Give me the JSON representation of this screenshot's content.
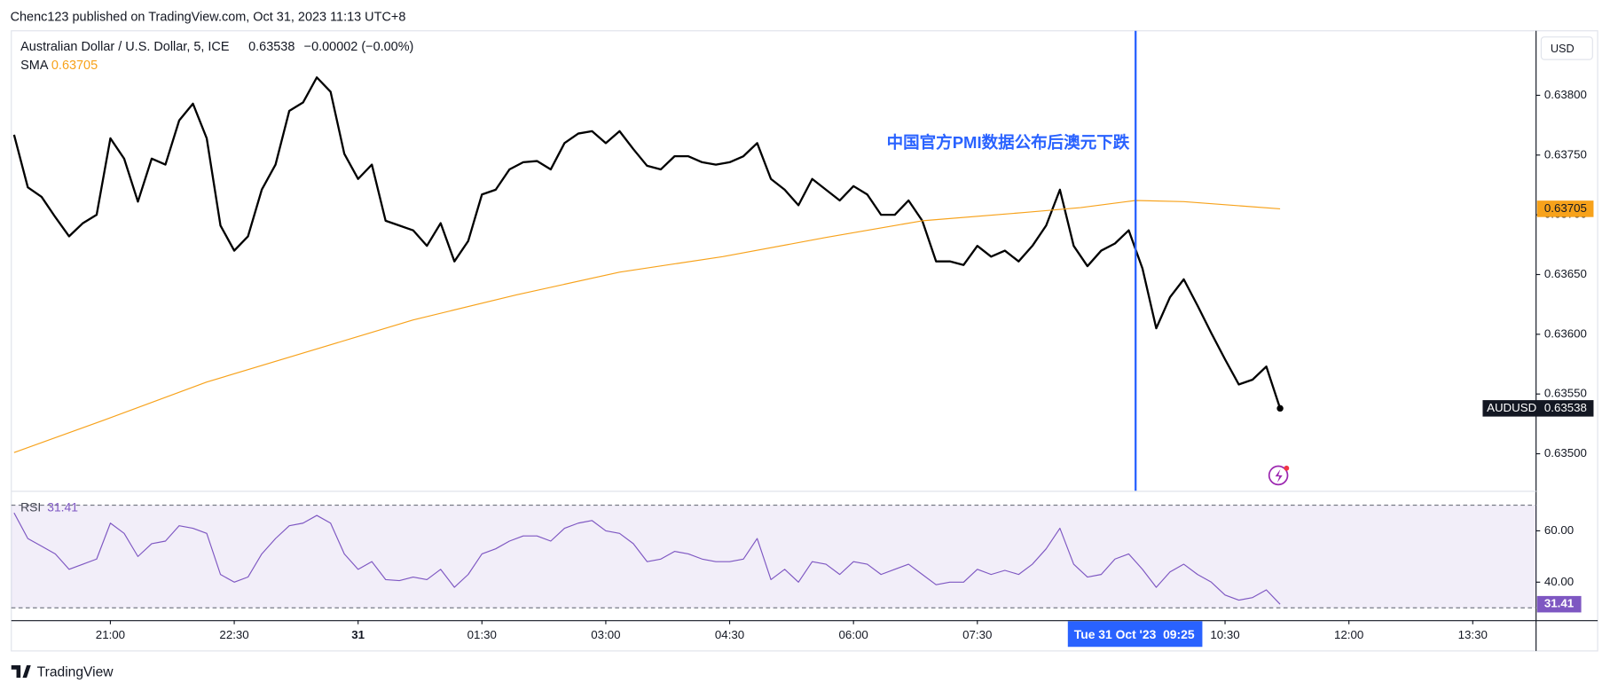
{
  "header": "Chenc123 published on TradingView.com, Oct 31, 2023 11:13 UTC+8",
  "footer": "TradingView",
  "chart_data": [
    {
      "type": "line",
      "title": "Australian Dollar / U.S. Dollar, 5, ICE",
      "change": "−0.00002 (−0.00%)",
      "currency": "USD",
      "annotation": "中国官方PMI数据公布后澳元下跌",
      "marker": {
        "x": "09:25",
        "label": "Tue 31 Oct '23"
      },
      "x": [
        "19:50",
        "20:00",
        "20:10",
        "20:20",
        "20:30",
        "20:40",
        "20:50",
        "21:00",
        "21:10",
        "21:20",
        "21:30",
        "21:40",
        "21:50",
        "22:00",
        "22:10",
        "22:20",
        "22:30",
        "22:40",
        "22:50",
        "23:00",
        "23:10",
        "23:20",
        "23:30",
        "23:40",
        "23:50",
        "00:00",
        "00:10",
        "00:20",
        "00:30",
        "00:40",
        "00:50",
        "01:00",
        "01:10",
        "01:20",
        "01:30",
        "01:40",
        "01:50",
        "02:00",
        "02:10",
        "02:20",
        "02:30",
        "02:40",
        "02:50",
        "03:00",
        "03:10",
        "03:20",
        "03:30",
        "03:40",
        "03:50",
        "04:00",
        "04:10",
        "04:20",
        "04:30",
        "04:40",
        "04:50",
        "05:00",
        "05:10",
        "05:20",
        "05:30",
        "05:40",
        "05:50",
        "06:00",
        "06:10",
        "06:20",
        "06:30",
        "06:40",
        "06:50",
        "07:00",
        "07:10",
        "07:20",
        "07:30",
        "07:40",
        "07:50",
        "08:00",
        "08:10",
        "08:20",
        "08:30",
        "08:40",
        "08:50",
        "09:00",
        "09:10",
        "09:20",
        "09:30",
        "09:40",
        "09:50",
        "10:00",
        "10:10",
        "10:20",
        "10:30",
        "10:40",
        "10:50",
        "11:00",
        "11:10"
      ],
      "series": [
        {
          "name": "AUDUSD",
          "color": "#000000",
          "values": [
            0.63767,
            0.63723,
            0.63715,
            0.63698,
            0.63682,
            0.63693,
            0.637,
            0.63764,
            0.63747,
            0.63711,
            0.63747,
            0.63742,
            0.63779,
            0.63793,
            0.63764,
            0.63691,
            0.6367,
            0.63682,
            0.63721,
            0.63742,
            0.63787,
            0.63794,
            0.63815,
            0.63803,
            0.63751,
            0.6373,
            0.63742,
            0.63695,
            0.63691,
            0.63687,
            0.63674,
            0.63693,
            0.63661,
            0.63678,
            0.63717,
            0.63721,
            0.63738,
            0.63744,
            0.63745,
            0.63738,
            0.6376,
            0.63768,
            0.6377,
            0.6376,
            0.6377,
            0.63755,
            0.63741,
            0.63738,
            0.63749,
            0.63749,
            0.63744,
            0.63742,
            0.63744,
            0.63749,
            0.6376,
            0.6373,
            0.63721,
            0.63708,
            0.6373,
            0.63721,
            0.63712,
            0.63724,
            0.63717,
            0.637,
            0.637,
            0.63712,
            0.63695,
            0.63661,
            0.63661,
            0.63658,
            0.63674,
            0.63665,
            0.6367,
            0.63661,
            0.63674,
            0.63691,
            0.63721,
            0.63674,
            0.63657,
            0.6367,
            0.63676,
            0.63687,
            0.63655,
            0.63605,
            0.63631,
            0.63646,
            0.63624,
            0.63601,
            0.63579,
            0.63558,
            0.63562,
            0.63573,
            0.63538
          ]
        },
        {
          "name": "SMA",
          "color": "#f7a21b",
          "x": [
            "19:50",
            "20:55",
            "22:10",
            "23:25",
            "00:40",
            "01:55",
            "03:10",
            "04:25",
            "05:40",
            "06:50",
            "08:05",
            "08:45",
            "09:25",
            "10:00",
            "11:10"
          ],
          "values": [
            0.63501,
            0.63528,
            0.6356,
            0.63586,
            0.63612,
            0.63633,
            0.63652,
            0.63665,
            0.63681,
            0.63695,
            0.63702,
            0.63706,
            0.63712,
            0.63711,
            0.63705
          ]
        }
      ],
      "xlim": [
        "19:48",
        "14:16"
      ],
      "xticks": [
        "21:00",
        "22:30",
        {
          "value": "00:00",
          "label": "31"
        },
        "01:30",
        "03:00",
        "04:30",
        "06:00",
        "07:30",
        "10:30",
        "12:00",
        "13:30"
      ],
      "ylim": [
        0.63469,
        0.63854
      ],
      "yticks": [
        {
          "value": 0.635,
          "label": "0.63500"
        },
        {
          "value": 0.6355,
          "label": "0.63550"
        },
        {
          "value": 0.636,
          "label": "0.63600"
        },
        {
          "value": 0.6365,
          "label": "0.63650"
        },
        {
          "value": 0.637,
          "label": "0.63700"
        },
        {
          "value": 0.6375,
          "label": "0.63750"
        },
        {
          "value": 0.638,
          "label": "0.63800"
        }
      ]
    },
    {
      "type": "line",
      "title": "RSI",
      "series": [
        {
          "name": "RSI",
          "color": "#7e57c2",
          "values": [
            67,
            57,
            54,
            51,
            45,
            47,
            49,
            63,
            59,
            50,
            55,
            56,
            62,
            61,
            59,
            43,
            40,
            42,
            51,
            57,
            62,
            63,
            66,
            63,
            51,
            45,
            48,
            41,
            40.6,
            42,
            41,
            45,
            38,
            43,
            51,
            53,
            56,
            58,
            58,
            56,
            61,
            63,
            64,
            60,
            59,
            55,
            48,
            49,
            52,
            51,
            49,
            48,
            48,
            49,
            57,
            41,
            45,
            40,
            48,
            47,
            43,
            48,
            47,
            43,
            45,
            47,
            43,
            39,
            40,
            40,
            45,
            43,
            44.6,
            43,
            47,
            53,
            61,
            47,
            42,
            43,
            49,
            51,
            45,
            38,
            44,
            47,
            43,
            40,
            35,
            33,
            34,
            37,
            31.41
          ]
        }
      ],
      "bands": [
        30,
        70
      ],
      "ylim": [
        25.2,
        74.8
      ],
      "yticks": [
        {
          "value": 40,
          "label": "40.00"
        },
        {
          "value": 60,
          "label": "60.00"
        }
      ]
    }
  ]
}
